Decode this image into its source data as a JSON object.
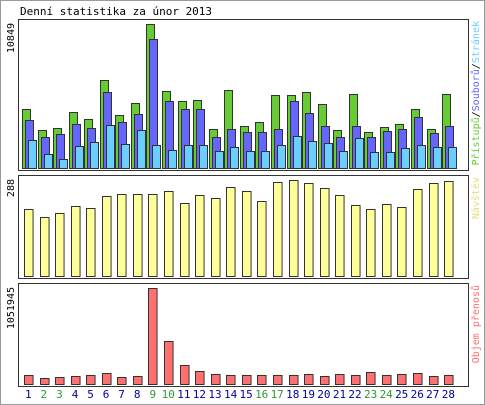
{
  "title": "Denní statistika za únor 2013",
  "colors": {
    "hits": "#66CC33",
    "files": "#6666FF",
    "pages": "#6ACFFF",
    "visits": "#FFFF99",
    "kbytes": "#FF7070",
    "weekday_label": "#0000A0",
    "weekend_label": "#2E9A2E",
    "frame": "#333333"
  },
  "chart_data": [
    {
      "type": "bar",
      "title": "",
      "ymax_label": "10849",
      "ylim": [
        0,
        10849
      ],
      "right_label_parts": [
        {
          "text": "Přístupů",
          "color": "#66CC33"
        },
        {
          "text": "/",
          "color": "#000000"
        },
        {
          "text": "Souborů",
          "color": "#6666FF"
        },
        {
          "text": "/",
          "color": "#000000"
        },
        {
          "text": "Stránek",
          "color": "#6ACFFF"
        }
      ],
      "categories": [
        "1",
        "2",
        "3",
        "4",
        "5",
        "6",
        "7",
        "8",
        "9",
        "10",
        "11",
        "12",
        "13",
        "14",
        "15",
        "16",
        "17",
        "18",
        "19",
        "20",
        "21",
        "22",
        "23",
        "24",
        "25",
        "26",
        "27",
        "28"
      ],
      "series": [
        {
          "name": "Přístupů",
          "color": "#66CC33",
          "values": [
            4470,
            2827,
            3004,
            4250,
            3668,
            6630,
            4030,
            4879,
            10849,
            5770,
            5040,
            5105,
            2915,
            5880,
            3190,
            3480,
            5506,
            5512,
            5730,
            4850,
            2870,
            5573,
            2727,
            3117,
            3299,
            4468,
            2950,
            5540
          ]
        },
        {
          "name": "Souborů",
          "color": "#6666FF",
          "values": [
            3630,
            2350,
            2570,
            3300,
            3010,
            5750,
            3500,
            4055,
            9750,
            5080,
            4480,
            4450,
            2350,
            2950,
            2680,
            2710,
            2905,
            5030,
            4150,
            3190,
            2300,
            3180,
            2320,
            2800,
            2930,
            3880,
            2650,
            3160
          ]
        },
        {
          "name": "Stránek",
          "color": "#6ACFFF",
          "values": [
            2097,
            1041,
            690,
            1640,
            1960,
            3230,
            1820,
            2868,
            1770,
            1370,
            1745,
            1730,
            1310,
            1616,
            1290,
            1285,
            1745,
            2410,
            2070,
            1910,
            1260,
            2290,
            1185,
            1230,
            1485,
            1720,
            1560,
            1615
          ]
        }
      ]
    },
    {
      "type": "bar",
      "title": "",
      "ymax_label": "288",
      "ylim": [
        0,
        288
      ],
      "right_label_parts": [
        {
          "text": "Návštěv",
          "color": "#E0E080"
        }
      ],
      "categories": [
        "1",
        "2",
        "3",
        "4",
        "5",
        "6",
        "7",
        "8",
        "9",
        "10",
        "11",
        "12",
        "13",
        "14",
        "15",
        "16",
        "17",
        "18",
        "19",
        "20",
        "21",
        "22",
        "23",
        "24",
        "25",
        "26",
        "27",
        "28"
      ],
      "series": [
        {
          "name": "Návštěv",
          "color": "#FFFF99",
          "values": [
            202,
            177,
            188,
            211,
            204,
            239,
            246,
            246,
            245,
            255,
            218,
            244,
            234,
            268,
            256,
            226,
            281,
            288,
            279,
            265,
            243,
            213,
            200,
            215,
            208,
            262,
            278,
            284
          ]
        }
      ]
    },
    {
      "type": "bar",
      "title": "",
      "ymax_label": "1051945",
      "ylim": [
        0,
        1051945
      ],
      "right_label_parts": [
        {
          "text": "Objem přenosů",
          "color": "#FF7070"
        }
      ],
      "categories": [
        "1",
        "2",
        "3",
        "4",
        "5",
        "6",
        "7",
        "8",
        "9",
        "10",
        "11",
        "12",
        "13",
        "14",
        "15",
        "16",
        "17",
        "18",
        "19",
        "20",
        "21",
        "22",
        "23",
        "24",
        "25",
        "26",
        "27",
        "28"
      ],
      "series": [
        {
          "name": "Objem přenosů",
          "color": "#FF7070",
          "values": [
            93600,
            63700,
            75900,
            87400,
            93800,
            118800,
            74700,
            83500,
            1051945,
            465800,
            203300,
            138000,
            111800,
            101900,
            103700,
            95800,
            98000,
            99500,
            105400,
            84600,
            112600,
            98700,
            136900,
            97500,
            106000,
            125500,
            88700,
            103400
          ]
        }
      ]
    }
  ],
  "x_labels": [
    "1",
    "2",
    "3",
    "4",
    "5",
    "6",
    "7",
    "8",
    "9",
    "10",
    "11",
    "12",
    "13",
    "14",
    "15",
    "16",
    "17",
    "18",
    "19",
    "20",
    "21",
    "22",
    "23",
    "24",
    "25",
    "26",
    "27",
    "28"
  ],
  "weekend_days": [
    "2",
    "3",
    "9",
    "10",
    "16",
    "17",
    "23",
    "24"
  ]
}
